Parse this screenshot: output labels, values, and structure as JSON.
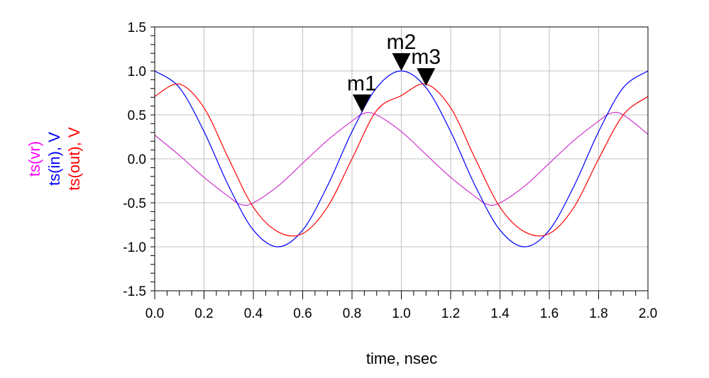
{
  "chart_data": {
    "type": "line",
    "xlabel": "time, nsec",
    "xlim": [
      0.0,
      2.0
    ],
    "ylim": [
      -1.5,
      1.5
    ],
    "x_ticks": [
      "0.0",
      "0.2",
      "0.4",
      "0.6",
      "0.8",
      "1.0",
      "1.2",
      "1.4",
      "1.6",
      "1.8",
      "2.0"
    ],
    "y_ticks": [
      "1.5",
      "1.0",
      "0.5",
      "0.0",
      "-0.5",
      "-1.0",
      "-1.5"
    ],
    "grid": true,
    "series": [
      {
        "name": "ts(vr)",
        "color": "#cc33cc",
        "x": [
          0.0,
          0.1,
          0.2,
          0.3,
          0.35,
          0.4,
          0.5,
          0.6,
          0.7,
          0.8,
          0.85,
          0.9,
          1.0,
          1.1,
          1.2,
          1.3,
          1.35,
          1.4,
          1.5,
          1.6,
          1.7,
          1.8,
          1.85,
          1.9,
          2.0
        ],
        "y": [
          0.27,
          0.04,
          -0.21,
          -0.43,
          -0.52,
          -0.5,
          -0.31,
          -0.05,
          0.21,
          0.43,
          0.52,
          0.5,
          0.31,
          0.05,
          -0.21,
          -0.43,
          -0.52,
          -0.5,
          -0.31,
          -0.05,
          0.21,
          0.43,
          0.52,
          0.5,
          0.28
        ]
      },
      {
        "name": "ts(in)",
        "color": "#0000ff",
        "x": [
          0.0,
          0.1,
          0.2,
          0.3,
          0.4,
          0.5,
          0.6,
          0.7,
          0.8,
          0.9,
          1.0,
          1.1,
          1.2,
          1.3,
          1.4,
          1.5,
          1.6,
          1.7,
          1.8,
          1.9,
          2.0
        ],
        "y": [
          1.0,
          0.81,
          0.31,
          -0.31,
          -0.81,
          -1.0,
          -0.81,
          -0.31,
          0.31,
          0.81,
          1.0,
          0.81,
          0.31,
          -0.31,
          -0.81,
          -1.0,
          -0.81,
          -0.31,
          0.31,
          0.81,
          1.0
        ]
      },
      {
        "name": "ts(out)",
        "color": "#ff0000",
        "x": [
          0.0,
          0.1,
          0.2,
          0.3,
          0.4,
          0.5,
          0.6,
          0.7,
          0.8,
          0.9,
          1.0,
          1.1,
          1.2,
          1.3,
          1.4,
          1.5,
          1.6,
          1.7,
          1.8,
          1.9,
          2.0
        ],
        "y": [
          0.71,
          0.85,
          0.58,
          0.0,
          -0.55,
          -0.83,
          -0.85,
          -0.55,
          0.0,
          0.55,
          0.72,
          0.85,
          0.58,
          0.0,
          -0.55,
          -0.83,
          -0.85,
          -0.55,
          0.0,
          0.5,
          0.71
        ]
      }
    ],
    "markers": [
      {
        "label": "m1",
        "x": 0.84,
        "y": 0.53
      },
      {
        "label": "m2",
        "x": 1.0,
        "y": 1.0
      },
      {
        "label": "m3",
        "x": 1.1,
        "y": 0.83
      }
    ],
    "ylabels": [
      {
        "text": "ts(vr)",
        "color": "#ff00ff"
      },
      {
        "text": "ts(in), V",
        "color": "#0000ff"
      },
      {
        "text": "ts(out), V",
        "color": "#ff0000"
      }
    ]
  }
}
